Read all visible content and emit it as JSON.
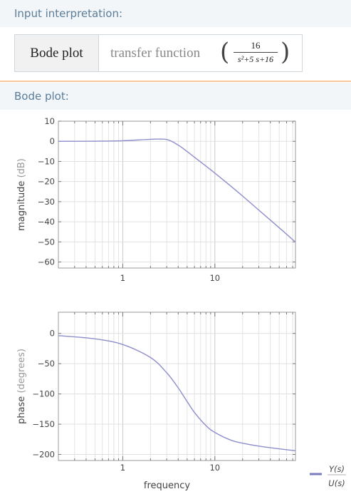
{
  "input_interpretation": {
    "header": "Input interpretation:",
    "query_label": "Bode plot",
    "query_text": "transfer function",
    "fraction_numerator": "16",
    "fraction_denominator": "s²+5 s+16"
  },
  "bode_plot": {
    "header": "Bode plot:"
  },
  "chart_data": [
    {
      "type": "line",
      "x_scale": "log",
      "xlim": [
        0.2,
        75
      ],
      "ylim": [
        -63,
        10
      ],
      "yticks": [
        10,
        0,
        -10,
        -20,
        -30,
        -40,
        -50,
        -60
      ],
      "ytick_labels": [
        "10",
        "0",
        "−10",
        "−20",
        "−30",
        "−40",
        "−50",
        "−60"
      ],
      "xticks": [
        1,
        10
      ],
      "xtick_labels": [
        "1",
        "10"
      ],
      "ylabel": "magnitude",
      "ylabel_unit": "(dB)",
      "grid": true,
      "series_color": "#8e8ecc",
      "x": [
        0.2,
        0.5,
        1,
        2,
        3,
        4,
        5,
        6,
        8,
        10,
        15,
        20,
        30,
        50,
        75
      ],
      "y": [
        0.0,
        0.07,
        0.27,
        0.99,
        0.88,
        -1.9,
        -5.1,
        -7.9,
        -12.3,
        -15.8,
        -22.4,
        -27.2,
        -34.2,
        -43.0,
        -50.1
      ]
    },
    {
      "type": "line",
      "x_scale": "log",
      "xlim": [
        0.2,
        75
      ],
      "ylim": [
        -210,
        35
      ],
      "yticks": [
        0,
        -50,
        -100,
        -150,
        -200
      ],
      "ytick_labels": [
        "0",
        "−50",
        "−100",
        "−150",
        "−200"
      ],
      "xticks": [
        1,
        10
      ],
      "xtick_labels": [
        "1",
        "10"
      ],
      "xlabel": "frequency",
      "ylabel": "phase",
      "ylabel_unit": "(degrees)",
      "grid": true,
      "series_color": "#8e8ecc",
      "x": [
        0.2,
        0.5,
        1,
        2,
        3,
        4,
        5,
        6,
        8,
        10,
        15,
        20,
        30,
        50,
        75
      ],
      "y": [
        -3.6,
        -9.0,
        -18.4,
        -39.8,
        -65.0,
        -90.0,
        -112.6,
        -130.6,
        -152.3,
        -163.6,
        -176.5,
        -181.3,
        -186.2,
        -190.7,
        -193.9
      ]
    }
  ],
  "legend": {
    "numerator": "Y(s)",
    "denominator": "U(s)",
    "color": "#7b7bbf"
  }
}
